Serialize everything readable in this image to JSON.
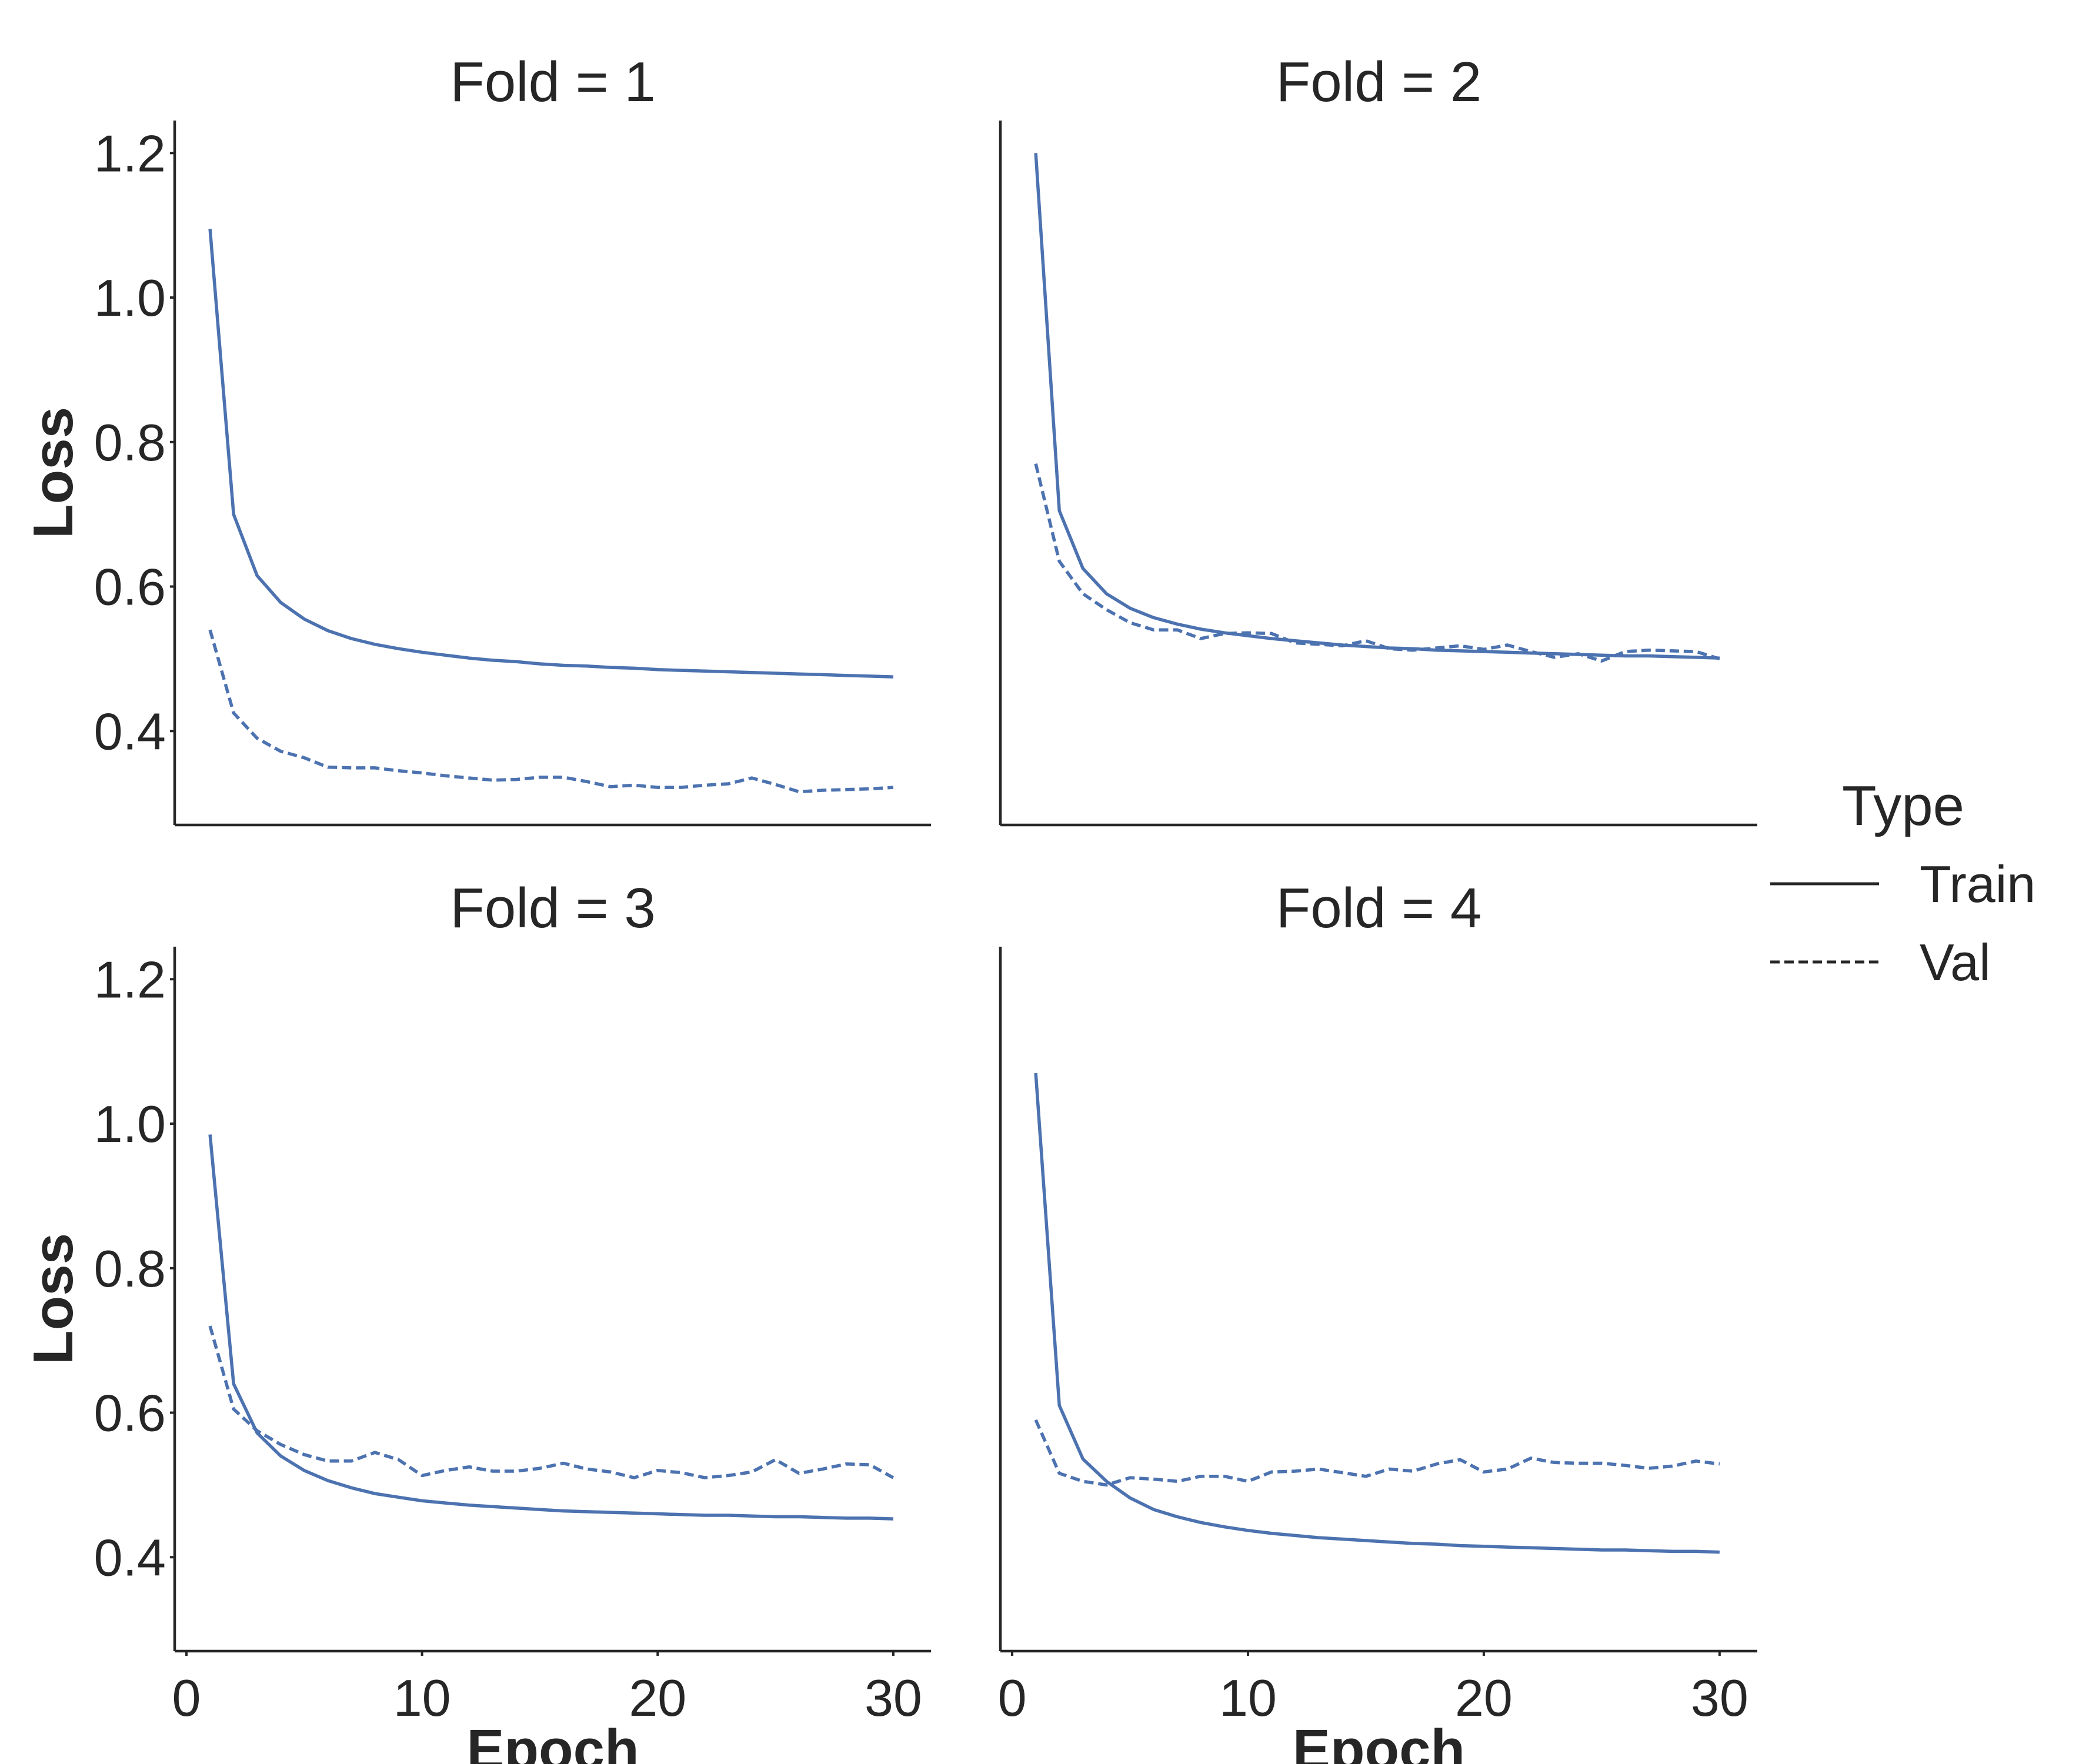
{
  "chart_data": {
    "type": "line",
    "layout": "facet-grid 2x2",
    "xlabel": "Epoch",
    "ylabel": "Loss",
    "xlim": [
      -0.5,
      31.6
    ],
    "ylim": [
      0.27,
      1.245
    ],
    "x_ticks": [
      0,
      10,
      20,
      30
    ],
    "y_ticks": [
      0.4,
      0.6,
      0.8,
      1.0,
      1.2
    ],
    "y_tick_labels": [
      "0.4",
      "0.6",
      "0.8",
      "1.0",
      "1.2"
    ],
    "grid": false,
    "line_color": "#4c72b0",
    "legend": {
      "title": "Type",
      "position": "right",
      "entries": [
        {
          "label": "Train",
          "style": "solid"
        },
        {
          "label": "Val",
          "style": "dashed"
        }
      ]
    },
    "x": [
      1,
      2,
      3,
      4,
      5,
      6,
      7,
      8,
      9,
      10,
      11,
      12,
      13,
      14,
      15,
      16,
      17,
      18,
      19,
      20,
      21,
      22,
      23,
      24,
      25,
      26,
      27,
      28,
      29,
      30
    ],
    "facets": [
      {
        "title": "Fold = 1",
        "series": [
          {
            "name": "Train",
            "style": "solid",
            "values": [
              1.095,
              0.7,
              0.615,
              0.578,
              0.555,
              0.539,
              0.528,
              0.52,
              0.514,
              0.509,
              0.505,
              0.501,
              0.498,
              0.496,
              0.493,
              0.491,
              0.49,
              0.488,
              0.487,
              0.485,
              0.484,
              0.483,
              0.482,
              0.481,
              0.48,
              0.479,
              0.478,
              0.477,
              0.476,
              0.475
            ]
          },
          {
            "name": "Val",
            "style": "dashed",
            "values": [
              0.54,
              0.425,
              0.39,
              0.372,
              0.363,
              0.35,
              0.349,
              0.349,
              0.345,
              0.342,
              0.338,
              0.335,
              0.332,
              0.333,
              0.336,
              0.336,
              0.33,
              0.323,
              0.325,
              0.322,
              0.322,
              0.325,
              0.327,
              0.335,
              0.326,
              0.316,
              0.318,
              0.319,
              0.32,
              0.322
            ]
          }
        ]
      },
      {
        "title": "Fold = 2",
        "series": [
          {
            "name": "Train",
            "style": "solid",
            "values": [
              1.2,
              0.705,
              0.625,
              0.59,
              0.57,
              0.557,
              0.548,
              0.541,
              0.536,
              0.532,
              0.528,
              0.525,
              0.522,
              0.519,
              0.517,
              0.515,
              0.514,
              0.512,
              0.511,
              0.51,
              0.509,
              0.508,
              0.507,
              0.506,
              0.505,
              0.504,
              0.504,
              0.503,
              0.502,
              0.501
            ]
          },
          {
            "name": "Val",
            "style": "dashed",
            "values": [
              0.77,
              0.635,
              0.59,
              0.568,
              0.55,
              0.54,
              0.54,
              0.528,
              0.535,
              0.536,
              0.535,
              0.522,
              0.52,
              0.518,
              0.525,
              0.514,
              0.512,
              0.515,
              0.518,
              0.513,
              0.519,
              0.51,
              0.502,
              0.507,
              0.497,
              0.51,
              0.512,
              0.511,
              0.51,
              0.5
            ]
          }
        ]
      },
      {
        "title": "Fold = 3",
        "series": [
          {
            "name": "Train",
            "style": "solid",
            "values": [
              0.985,
              0.64,
              0.572,
              0.54,
              0.52,
              0.506,
              0.496,
              0.488,
              0.483,
              0.478,
              0.475,
              0.472,
              0.47,
              0.468,
              0.466,
              0.464,
              0.463,
              0.462,
              0.461,
              0.46,
              0.459,
              0.458,
              0.458,
              0.457,
              0.456,
              0.456,
              0.455,
              0.454,
              0.454,
              0.453
            ]
          },
          {
            "name": "Val",
            "style": "dashed",
            "values": [
              0.72,
              0.605,
              0.575,
              0.556,
              0.542,
              0.533,
              0.533,
              0.545,
              0.535,
              0.513,
              0.52,
              0.525,
              0.519,
              0.519,
              0.523,
              0.53,
              0.522,
              0.518,
              0.51,
              0.52,
              0.517,
              0.51,
              0.513,
              0.518,
              0.535,
              0.516,
              0.522,
              0.529,
              0.528,
              0.51
            ]
          }
        ]
      },
      {
        "title": "Fold = 4",
        "series": [
          {
            "name": "Train",
            "style": "solid",
            "values": [
              1.07,
              0.61,
              0.536,
              0.505,
              0.482,
              0.466,
              0.456,
              0.448,
              0.442,
              0.437,
              0.433,
              0.43,
              0.427,
              0.425,
              0.423,
              0.421,
              0.419,
              0.418,
              0.416,
              0.415,
              0.414,
              0.413,
              0.412,
              0.411,
              0.41,
              0.41,
              0.409,
              0.408,
              0.408,
              0.407
            ]
          },
          {
            "name": "Val",
            "style": "dashed",
            "values": [
              0.59,
              0.516,
              0.505,
              0.5,
              0.51,
              0.508,
              0.505,
              0.512,
              0.512,
              0.505,
              0.518,
              0.519,
              0.522,
              0.517,
              0.512,
              0.522,
              0.519,
              0.529,
              0.535,
              0.518,
              0.522,
              0.537,
              0.531,
              0.53,
              0.53,
              0.527,
              0.523,
              0.526,
              0.533,
              0.529
            ]
          }
        ]
      }
    ]
  }
}
